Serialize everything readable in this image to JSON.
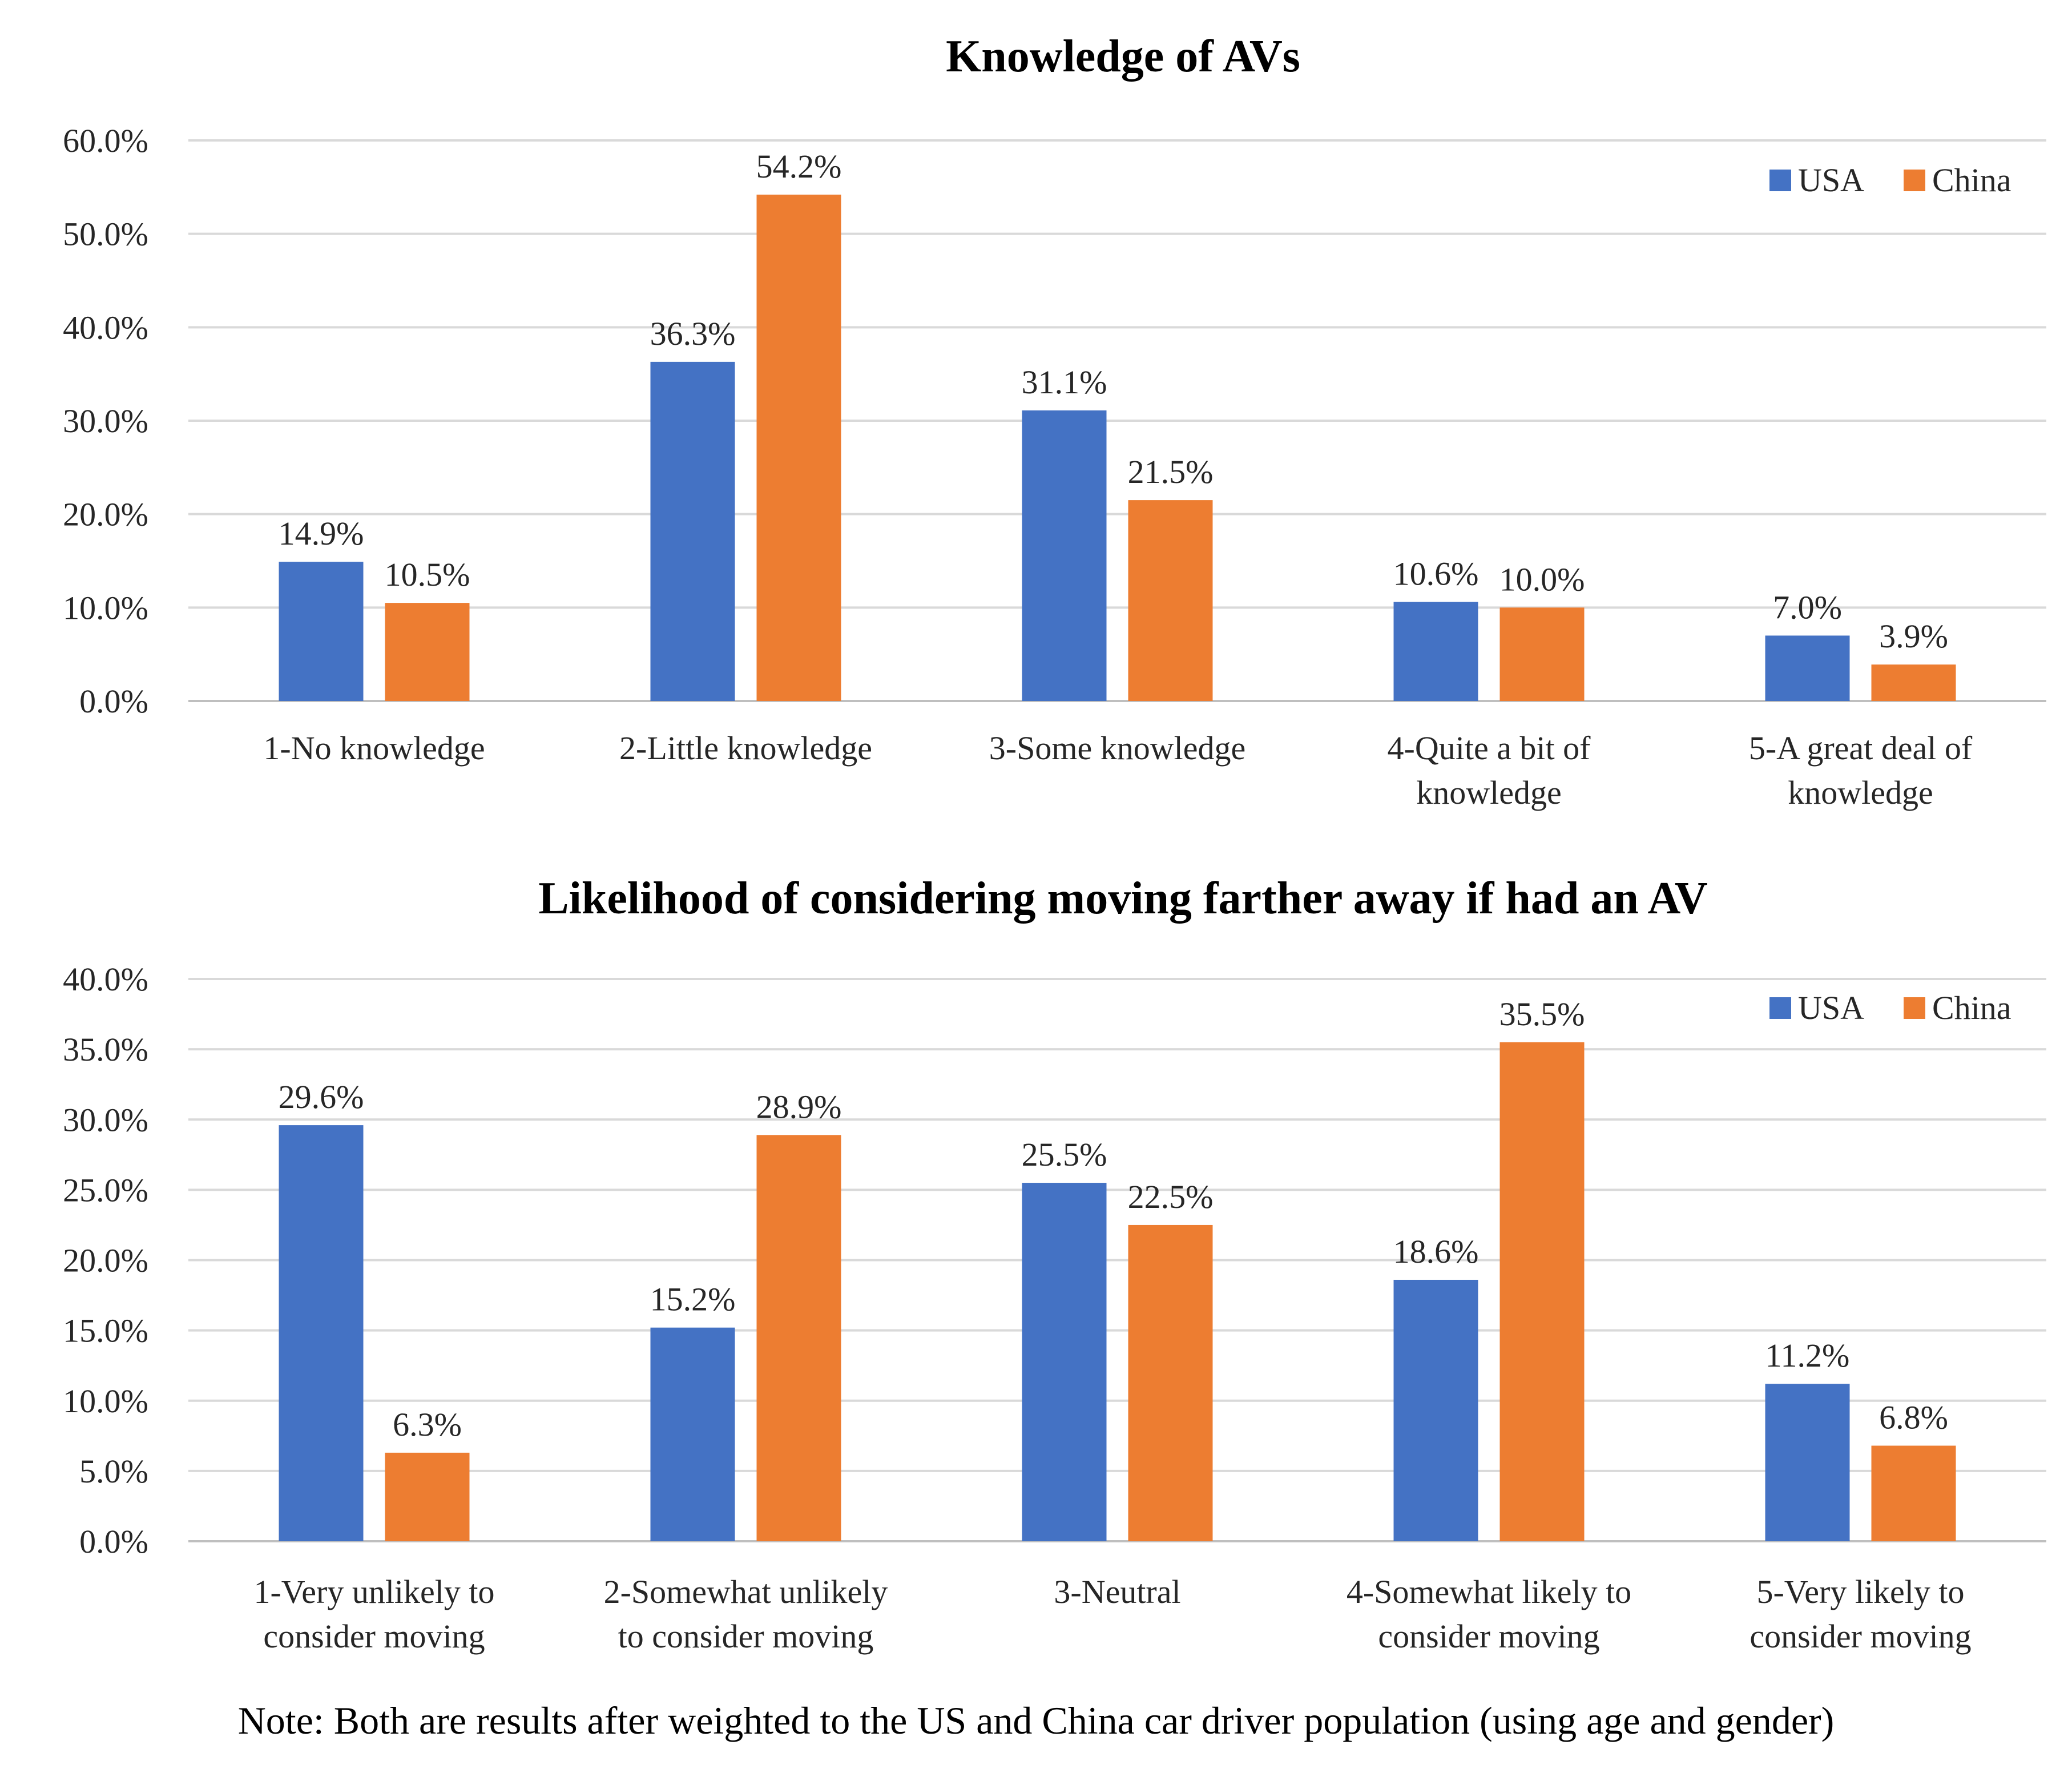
{
  "chart_data": [
    {
      "type": "bar",
      "title": "Knowledge of AVs",
      "xlabel": "",
      "ylabel": "",
      "ylim": [
        0,
        60
      ],
      "yticks": [
        "0.0%",
        "10.0%",
        "20.0%",
        "30.0%",
        "40.0%",
        "50.0%",
        "60.0%"
      ],
      "ytick_values": [
        0,
        10,
        20,
        30,
        40,
        50,
        60
      ],
      "grid": true,
      "legend": "top-right",
      "categories": [
        [
          "1-No knowledge"
        ],
        [
          "2-Little knowledge"
        ],
        [
          "3-Some knowledge"
        ],
        [
          "4-Quite a bit of",
          "knowledge"
        ],
        [
          "5-A great deal of",
          "knowledge"
        ]
      ],
      "series": [
        {
          "name": "USA",
          "color": "#4472C4",
          "values": [
            14.9,
            36.3,
            31.1,
            10.6,
            7.0
          ],
          "labels": [
            "14.9%",
            "36.3%",
            "31.1%",
            "10.6%",
            "7.0%"
          ]
        },
        {
          "name": "China",
          "color": "#ED7D31",
          "values": [
            10.5,
            54.2,
            21.5,
            10.0,
            3.9
          ],
          "labels": [
            "10.5%",
            "54.2%",
            "21.5%",
            "10.0%",
            "3.9%"
          ]
        }
      ]
    },
    {
      "type": "bar",
      "title": "Likelihood of considering moving farther away if had an AV",
      "xlabel": "",
      "ylabel": "",
      "ylim": [
        0,
        40
      ],
      "yticks": [
        "0.0%",
        "5.0%",
        "10.0%",
        "15.0%",
        "20.0%",
        "25.0%",
        "30.0%",
        "35.0%",
        "40.0%"
      ],
      "ytick_values": [
        0,
        5,
        10,
        15,
        20,
        25,
        30,
        35,
        40
      ],
      "grid": true,
      "legend": "top-right",
      "categories": [
        [
          "1-Very unlikely to",
          "consider moving"
        ],
        [
          "2-Somewhat unlikely",
          "to consider moving"
        ],
        [
          "3-Neutral"
        ],
        [
          "4-Somewhat likely to",
          "consider moving"
        ],
        [
          "5-Very likely to",
          "consider moving"
        ]
      ],
      "series": [
        {
          "name": "USA",
          "color": "#4472C4",
          "values": [
            29.6,
            15.2,
            25.5,
            18.6,
            11.2
          ],
          "labels": [
            "29.6%",
            "15.2%",
            "25.5%",
            "18.6%",
            "11.2%"
          ]
        },
        {
          "name": "China",
          "color": "#ED7D31",
          "values": [
            6.3,
            28.9,
            22.5,
            35.5,
            6.8
          ],
          "labels": [
            "6.3%",
            "28.9%",
            "22.5%",
            "35.5%",
            "6.8%"
          ]
        }
      ]
    }
  ],
  "note": "Note: Both are results after weighted to the US and China car driver population (using age and gender)"
}
